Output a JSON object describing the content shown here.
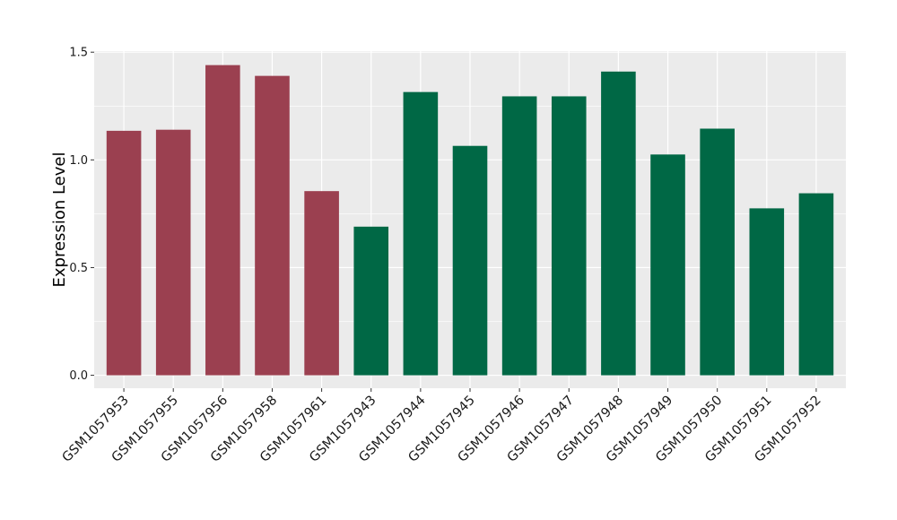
{
  "chart_data": {
    "type": "bar",
    "title": "",
    "xlabel": "",
    "ylabel": "Expression Level",
    "ylim": [
      -0.06,
      1.505
    ],
    "yticks": [
      0.0,
      0.5,
      1.0,
      1.5
    ],
    "ytick_labels": [
      "0.0",
      "0.5",
      "1.0",
      "1.5"
    ],
    "grid": true,
    "legend": "none",
    "categories": [
      "GSM1057953",
      "GSM1057955",
      "GSM1057956",
      "GSM1057958",
      "GSM1057961",
      "GSM1057943",
      "GSM1057944",
      "GSM1057945",
      "GSM1057946",
      "GSM1057947",
      "GSM1057948",
      "GSM1057949",
      "GSM1057950",
      "GSM1057951",
      "GSM1057952"
    ],
    "values": [
      1.135,
      1.14,
      1.44,
      1.39,
      0.855,
      0.69,
      1.315,
      1.065,
      1.295,
      1.295,
      1.41,
      1.025,
      1.145,
      0.775,
      0.845
    ],
    "bar_colors": [
      "#9b4050",
      "#9b4050",
      "#9b4050",
      "#9b4050",
      "#9b4050",
      "#006845",
      "#006845",
      "#006845",
      "#006845",
      "#006845",
      "#006845",
      "#006845",
      "#006845",
      "#006845",
      "#006845"
    ],
    "panel_background": "#ebebeb",
    "grid_color": "#ffffff"
  }
}
